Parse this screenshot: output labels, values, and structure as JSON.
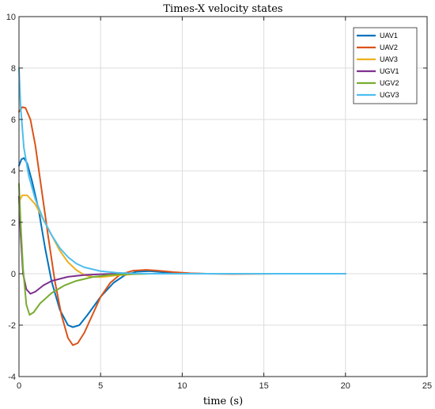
{
  "chart_data": {
    "type": "line",
    "title": "Times-X velocity states",
    "xlabel": "time (s)",
    "ylabel": "",
    "xlim": [
      0,
      25
    ],
    "ylim": [
      -4,
      10
    ],
    "xticks": [
      0,
      5,
      10,
      15,
      20,
      25
    ],
    "yticks": [
      -4,
      -2,
      0,
      2,
      4,
      6,
      8,
      10
    ],
    "grid": true,
    "legend_position": "top-right",
    "series": [
      {
        "name": "UAV1",
        "color": "#0072BD",
        "points": [
          [
            0,
            4.2
          ],
          [
            0.15,
            4.45
          ],
          [
            0.3,
            4.5
          ],
          [
            0.5,
            4.3
          ],
          [
            0.8,
            3.6
          ],
          [
            1.2,
            2.5
          ],
          [
            1.6,
            1.0
          ],
          [
            2.0,
            -0.3
          ],
          [
            2.5,
            -1.4
          ],
          [
            3.0,
            -2.0
          ],
          [
            3.3,
            -2.08
          ],
          [
            3.7,
            -2.0
          ],
          [
            4.2,
            -1.6
          ],
          [
            5.0,
            -0.9
          ],
          [
            5.8,
            -0.35
          ],
          [
            6.5,
            -0.05
          ],
          [
            7.2,
            0.08
          ],
          [
            8.0,
            0.1
          ],
          [
            9.0,
            0.05
          ],
          [
            10.0,
            0.0
          ],
          [
            12,
            0.0
          ],
          [
            14,
            0.0
          ],
          [
            16,
            0.0
          ],
          [
            20,
            0.0
          ]
        ]
      },
      {
        "name": "UAV2",
        "color": "#D95319",
        "points": [
          [
            0,
            6.3
          ],
          [
            0.2,
            6.48
          ],
          [
            0.4,
            6.45
          ],
          [
            0.7,
            6.0
          ],
          [
            1.0,
            5.0
          ],
          [
            1.4,
            3.2
          ],
          [
            1.8,
            1.4
          ],
          [
            2.2,
            -0.3
          ],
          [
            2.6,
            -1.6
          ],
          [
            3.0,
            -2.5
          ],
          [
            3.3,
            -2.78
          ],
          [
            3.6,
            -2.7
          ],
          [
            4.0,
            -2.3
          ],
          [
            4.5,
            -1.6
          ],
          [
            5.0,
            -0.9
          ],
          [
            5.6,
            -0.35
          ],
          [
            6.2,
            -0.03
          ],
          [
            7.0,
            0.12
          ],
          [
            7.8,
            0.15
          ],
          [
            8.5,
            0.12
          ],
          [
            9.5,
            0.06
          ],
          [
            10.5,
            0.02
          ],
          [
            11.5,
            0.0
          ],
          [
            13,
            -0.01
          ],
          [
            16,
            0.0
          ],
          [
            20,
            0.0
          ]
        ]
      },
      {
        "name": "UAV3",
        "color": "#EDB120",
        "points": [
          [
            0,
            2.8
          ],
          [
            0.2,
            3.05
          ],
          [
            0.5,
            3.05
          ],
          [
            1.0,
            2.7
          ],
          [
            1.5,
            2.1
          ],
          [
            2.0,
            1.5
          ],
          [
            2.5,
            0.9
          ],
          [
            3.0,
            0.45
          ],
          [
            3.5,
            0.15
          ],
          [
            4.0,
            -0.05
          ],
          [
            4.5,
            -0.12
          ],
          [
            5.0,
            -0.13
          ],
          [
            5.5,
            -0.1
          ],
          [
            6.0,
            -0.06
          ],
          [
            7.0,
            -0.02
          ],
          [
            8.0,
            0.0
          ],
          [
            10,
            0.0
          ],
          [
            15,
            0.0
          ],
          [
            20,
            0.0
          ]
        ]
      },
      {
        "name": "UGV1",
        "color": "#7E2F8E",
        "points": [
          [
            0,
            3.0
          ],
          [
            0.1,
            1.5
          ],
          [
            0.25,
            0.0
          ],
          [
            0.45,
            -0.6
          ],
          [
            0.7,
            -0.78
          ],
          [
            1.0,
            -0.7
          ],
          [
            1.5,
            -0.45
          ],
          [
            2.0,
            -0.28
          ],
          [
            3.0,
            -0.12
          ],
          [
            4.0,
            -0.05
          ],
          [
            5.0,
            -0.02
          ],
          [
            6.0,
            0.0
          ],
          [
            8,
            0.0
          ],
          [
            12,
            0.0
          ],
          [
            16,
            0.0
          ],
          [
            20,
            0.0
          ]
        ]
      },
      {
        "name": "UGV2",
        "color": "#77AC30",
        "points": [
          [
            0,
            3.5
          ],
          [
            0.1,
            2.0
          ],
          [
            0.25,
            0.2
          ],
          [
            0.45,
            -1.2
          ],
          [
            0.65,
            -1.6
          ],
          [
            0.9,
            -1.5
          ],
          [
            1.3,
            -1.15
          ],
          [
            2.0,
            -0.75
          ],
          [
            2.8,
            -0.45
          ],
          [
            3.5,
            -0.28
          ],
          [
            4.5,
            -0.13
          ],
          [
            5.5,
            -0.05
          ],
          [
            6.5,
            -0.02
          ],
          [
            8,
            0.0
          ],
          [
            12,
            0.0
          ],
          [
            16,
            0.0
          ],
          [
            20,
            0.0
          ]
        ]
      },
      {
        "name": "UGV3",
        "color": "#4DBEEE",
        "points": [
          [
            0,
            8.0
          ],
          [
            0.1,
            6.5
          ],
          [
            0.3,
            4.9
          ],
          [
            0.6,
            3.8
          ],
          [
            1.0,
            2.9
          ],
          [
            1.5,
            2.1
          ],
          [
            2.0,
            1.5
          ],
          [
            2.5,
            1.0
          ],
          [
            3.0,
            0.65
          ],
          [
            3.5,
            0.4
          ],
          [
            4.0,
            0.25
          ],
          [
            5.0,
            0.1
          ],
          [
            6.0,
            0.04
          ],
          [
            7.0,
            0.01
          ],
          [
            8.0,
            0.0
          ],
          [
            12,
            0.0
          ],
          [
            16,
            0.0
          ],
          [
            20,
            0.0
          ]
        ]
      }
    ]
  }
}
